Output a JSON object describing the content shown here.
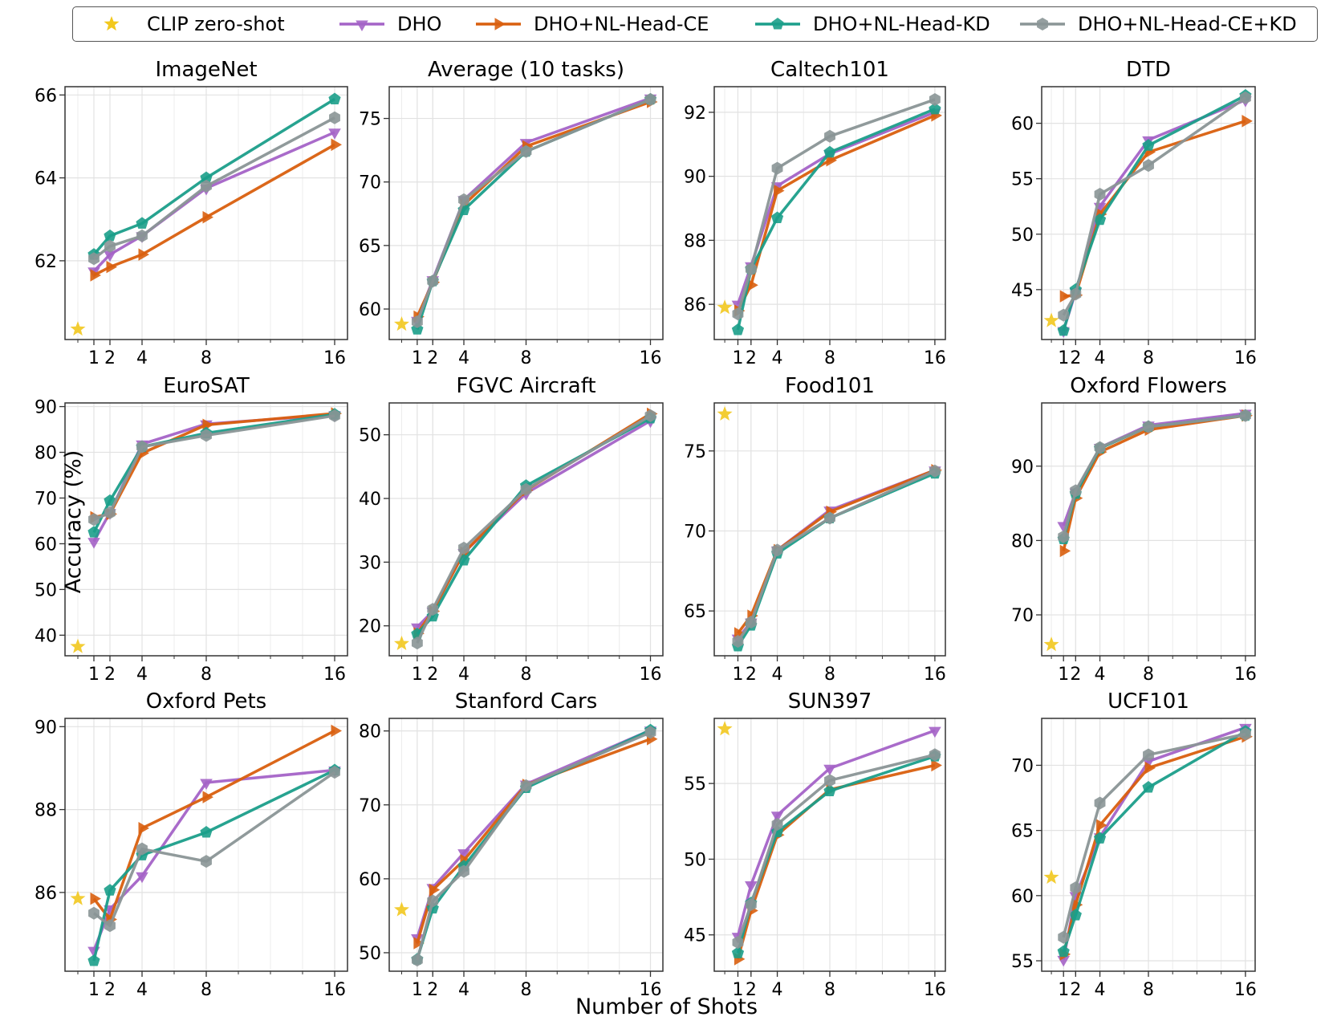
{
  "figure": {
    "xlabel": "Number of Shots",
    "ylabel": "Accuracy (%)"
  },
  "legend": [
    {
      "name": "CLIP zero-shot",
      "color": "#f2c81e",
      "marker": "star"
    },
    {
      "name": "DHO",
      "color": "#a463c7",
      "marker": "triangle-down"
    },
    {
      "name": "DHO+NL-Head-CE",
      "color": "#d95f0e",
      "marker": "triangle-right"
    },
    {
      "name": "DHO+NL-Head-KD",
      "color": "#1b9e8a",
      "marker": "pentagon"
    },
    {
      "name": "DHO+NL-Head-CE+KD",
      "color": "#8a9596",
      "marker": "hexagon"
    }
  ],
  "chart_data": [
    {
      "type": "line",
      "title": "ImageNet",
      "x": [
        1,
        2,
        4,
        8,
        16
      ],
      "xticks": [
        1,
        2,
        4,
        8,
        16
      ],
      "xlim": [
        -0.8,
        16.8
      ],
      "ylim": [
        60.1,
        66.2
      ],
      "yticks": [
        62,
        64,
        66
      ],
      "zero_shot": 60.35,
      "series": [
        {
          "name": "DHO",
          "values": [
            61.75,
            62.15,
            62.6,
            63.75,
            65.1
          ]
        },
        {
          "name": "DHO+NL-Head-CE",
          "values": [
            61.65,
            61.85,
            62.15,
            63.05,
            64.8
          ]
        },
        {
          "name": "DHO+NL-Head-KD",
          "values": [
            62.15,
            62.6,
            62.9,
            64.0,
            65.9
          ]
        },
        {
          "name": "DHO+NL-Head-CE+KD",
          "values": [
            62.05,
            62.35,
            62.6,
            63.8,
            65.45
          ]
        }
      ]
    },
    {
      "type": "line",
      "title": "Average (10 tasks)",
      "x": [
        1,
        2,
        4,
        8,
        16
      ],
      "xticks": [
        1,
        2,
        4,
        8,
        16
      ],
      "xlim": [
        -0.8,
        16.8
      ],
      "ylim": [
        57.6,
        77.5
      ],
      "yticks": [
        60,
        65,
        70,
        75
      ],
      "zero_shot": 58.8,
      "series": [
        {
          "name": "DHO",
          "values": [
            59.1,
            62.3,
            68.6,
            73.1,
            76.6
          ]
        },
        {
          "name": "DHO+NL-Head-CE",
          "values": [
            59.4,
            62.1,
            68.2,
            72.8,
            76.3
          ]
        },
        {
          "name": "DHO+NL-Head-KD",
          "values": [
            58.4,
            62.2,
            67.8,
            72.4,
            76.5
          ]
        },
        {
          "name": "DHO+NL-Head-CE+KD",
          "values": [
            59.0,
            62.2,
            68.6,
            72.4,
            76.5
          ]
        }
      ]
    },
    {
      "type": "line",
      "title": "Caltech101",
      "x": [
        1,
        2,
        4,
        8,
        16
      ],
      "xticks": [
        1,
        2,
        4,
        8,
        16
      ],
      "xlim": [
        -0.8,
        16.8
      ],
      "ylim": [
        84.9,
        92.8
      ],
      "yticks": [
        86,
        88,
        90,
        92
      ],
      "zero_shot": 85.9,
      "series": [
        {
          "name": "DHO",
          "values": [
            86.0,
            87.2,
            89.7,
            90.7,
            92.0
          ]
        },
        {
          "name": "DHO+NL-Head-CE",
          "values": [
            85.8,
            86.6,
            89.55,
            90.5,
            91.9
          ]
        },
        {
          "name": "DHO+NL-Head-KD",
          "values": [
            85.2,
            87.1,
            88.7,
            90.75,
            92.1
          ]
        },
        {
          "name": "DHO+NL-Head-CE+KD",
          "values": [
            85.7,
            87.1,
            90.25,
            91.25,
            92.4
          ]
        }
      ]
    },
    {
      "type": "line",
      "title": "DTD",
      "x": [
        1,
        2,
        4,
        8,
        16
      ],
      "xticks": [
        1,
        2,
        4,
        8,
        16
      ],
      "xlim": [
        -0.8,
        16.8
      ],
      "ylim": [
        40.5,
        63.3
      ],
      "yticks": [
        45,
        50,
        55,
        60
      ],
      "zero_shot": 42.2,
      "series": [
        {
          "name": "DHO",
          "values": [
            41.3,
            44.8,
            52.5,
            58.5,
            62.1
          ]
        },
        {
          "name": "DHO+NL-Head-CE",
          "values": [
            44.4,
            44.5,
            51.8,
            57.4,
            60.2
          ]
        },
        {
          "name": "DHO+NL-Head-KD",
          "values": [
            41.3,
            45.0,
            51.3,
            58.0,
            62.5
          ]
        },
        {
          "name": "DHO+NL-Head-CE+KD",
          "values": [
            42.7,
            44.6,
            53.6,
            56.2,
            62.3
          ]
        }
      ]
    },
    {
      "type": "line",
      "title": "EuroSAT",
      "x": [
        1,
        2,
        4,
        8,
        16
      ],
      "xticks": [
        1,
        2,
        4,
        8,
        16
      ],
      "xlim": [
        -0.8,
        16.8
      ],
      "ylim": [
        35.5,
        90.8
      ],
      "yticks": [
        40,
        50,
        60,
        70,
        80,
        90
      ],
      "zero_shot": 37.5,
      "series": [
        {
          "name": "DHO",
          "values": [
            60.5,
            66.8,
            81.8,
            86.2,
            88.2
          ]
        },
        {
          "name": "DHO+NL-Head-CE",
          "values": [
            65.8,
            66.5,
            79.8,
            86.0,
            88.5
          ]
        },
        {
          "name": "DHO+NL-Head-KD",
          "values": [
            62.5,
            69.4,
            81.2,
            84.2,
            88.3
          ]
        },
        {
          "name": "DHO+NL-Head-CE+KD",
          "values": [
            65.3,
            66.8,
            81.2,
            83.7,
            88.0
          ]
        }
      ]
    },
    {
      "type": "line",
      "title": "FGVC Aircraft",
      "x": [
        1,
        2,
        4,
        8,
        16
      ],
      "xticks": [
        1,
        2,
        4,
        8,
        16
      ],
      "xlim": [
        -0.8,
        16.8
      ],
      "ylim": [
        15.3,
        55.0
      ],
      "yticks": [
        20,
        30,
        40,
        50
      ],
      "zero_shot": 17.2,
      "series": [
        {
          "name": "DHO",
          "values": [
            19.8,
            22.3,
            31.5,
            40.8,
            52.2
          ]
        },
        {
          "name": "DHO+NL-Head-CE",
          "values": [
            18.8,
            22.3,
            31.5,
            41.3,
            53.3
          ]
        },
        {
          "name": "DHO+NL-Head-KD",
          "values": [
            18.7,
            21.5,
            30.3,
            42.0,
            52.6
          ]
        },
        {
          "name": "DHO+NL-Head-CE+KD",
          "values": [
            17.3,
            22.6,
            32.2,
            41.4,
            53.0
          ]
        }
      ]
    },
    {
      "type": "line",
      "title": "Food101",
      "x": [
        1,
        2,
        4,
        8,
        16
      ],
      "xticks": [
        1,
        2,
        4,
        8,
        16
      ],
      "xlim": [
        -0.8,
        16.8
      ],
      "ylim": [
        62.2,
        78.0
      ],
      "yticks": [
        65,
        70,
        75
      ],
      "zero_shot": 77.3,
      "series": [
        {
          "name": "DHO",
          "values": [
            63.3,
            64.3,
            68.8,
            71.3,
            73.8
          ]
        },
        {
          "name": "DHO+NL-Head-CE",
          "values": [
            63.6,
            64.7,
            68.8,
            71.2,
            73.8
          ]
        },
        {
          "name": "DHO+NL-Head-KD",
          "values": [
            62.8,
            64.1,
            68.6,
            70.8,
            73.6
          ]
        },
        {
          "name": "DHO+NL-Head-CE+KD",
          "values": [
            63.1,
            64.3,
            68.8,
            70.8,
            73.75
          ]
        }
      ]
    },
    {
      "type": "line",
      "title": "Oxford Flowers",
      "x": [
        1,
        2,
        4,
        8,
        16
      ],
      "xticks": [
        1,
        2,
        4,
        8,
        16
      ],
      "xlim": [
        -0.8,
        16.8
      ],
      "ylim": [
        64.5,
        98.5
      ],
      "yticks": [
        70,
        80,
        90
      ],
      "zero_shot": 66.0,
      "series": [
        {
          "name": "DHO",
          "values": [
            82.0,
            86.5,
            92.5,
            95.5,
            97.1
          ]
        },
        {
          "name": "DHO+NL-Head-CE",
          "values": [
            78.6,
            85.7,
            91.9,
            94.9,
            96.8
          ]
        },
        {
          "name": "DHO+NL-Head-KD",
          "values": [
            80.2,
            86.3,
            92.4,
            95.3,
            96.8
          ]
        },
        {
          "name": "DHO+NL-Head-CE+KD",
          "values": [
            80.5,
            86.7,
            92.5,
            95.3,
            96.8
          ]
        }
      ]
    },
    {
      "type": "line",
      "title": "Oxford Pets",
      "x": [
        1,
        2,
        4,
        8,
        16
      ],
      "xticks": [
        1,
        2,
        4,
        8,
        16
      ],
      "xlim": [
        -0.8,
        16.8
      ],
      "ylim": [
        84.1,
        90.2
      ],
      "yticks": [
        86,
        88,
        90
      ],
      "zero_shot": 85.85,
      "series": [
        {
          "name": "DHO",
          "values": [
            84.6,
            85.6,
            86.4,
            88.65,
            88.95
          ]
        },
        {
          "name": "DHO+NL-Head-CE",
          "values": [
            85.85,
            85.35,
            87.55,
            88.3,
            89.9
          ]
        },
        {
          "name": "DHO+NL-Head-KD",
          "values": [
            84.35,
            86.05,
            86.9,
            87.45,
            88.95
          ]
        },
        {
          "name": "DHO+NL-Head-CE+KD",
          "values": [
            85.5,
            85.2,
            87.05,
            86.75,
            88.9
          ]
        }
      ]
    },
    {
      "type": "line",
      "title": "Stanford Cars",
      "x": [
        1,
        2,
        4,
        8,
        16
      ],
      "xticks": [
        1,
        2,
        4,
        8,
        16
      ],
      "xlim": [
        -0.8,
        16.8
      ],
      "ylim": [
        47.5,
        81.7
      ],
      "yticks": [
        50,
        60,
        70,
        80
      ],
      "zero_shot": 55.8,
      "series": [
        {
          "name": "DHO",
          "values": [
            52.0,
            58.8,
            63.5,
            72.8,
            80.1
          ]
        },
        {
          "name": "DHO+NL-Head-CE",
          "values": [
            51.3,
            58.5,
            62.5,
            72.7,
            78.9
          ]
        },
        {
          "name": "DHO+NL-Head-KD",
          "values": [
            49.1,
            56.0,
            61.7,
            72.3,
            80.1
          ]
        },
        {
          "name": "DHO+NL-Head-CE+KD",
          "values": [
            49.0,
            57.0,
            61.0,
            72.6,
            79.8
          ]
        }
      ]
    },
    {
      "type": "line",
      "title": "SUN397",
      "x": [
        1,
        2,
        4,
        8,
        16
      ],
      "xticks": [
        1,
        2,
        4,
        8,
        16
      ],
      "xlim": [
        -0.8,
        16.8
      ],
      "ylim": [
        42.6,
        59.3
      ],
      "yticks": [
        45,
        50,
        55
      ],
      "zero_shot": 58.6,
      "series": [
        {
          "name": "DHO",
          "values": [
            44.9,
            48.3,
            52.9,
            56.0,
            58.5
          ]
        },
        {
          "name": "DHO+NL-Head-CE",
          "values": [
            43.4,
            46.6,
            51.6,
            54.6,
            56.2
          ]
        },
        {
          "name": "DHO+NL-Head-KD",
          "values": [
            43.8,
            47.1,
            51.8,
            54.5,
            56.8
          ]
        },
        {
          "name": "DHO+NL-Head-CE+KD",
          "values": [
            44.5,
            47.0,
            52.3,
            55.2,
            56.9
          ]
        }
      ]
    },
    {
      "type": "line",
      "title": "UCF101",
      "x": [
        1,
        2,
        4,
        8,
        16
      ],
      "xticks": [
        1,
        2,
        4,
        8,
        16
      ],
      "xlim": [
        -0.8,
        16.8
      ],
      "ylim": [
        54.2,
        73.6
      ],
      "yticks": [
        55,
        60,
        65,
        70
      ],
      "zero_shot": 61.4,
      "series": [
        {
          "name": "DHO",
          "values": [
            55.1,
            60.0,
            64.5,
            70.3,
            72.9
          ]
        },
        {
          "name": "DHO+NL-Head-CE",
          "values": [
            55.5,
            59.3,
            65.4,
            69.8,
            72.2
          ]
        },
        {
          "name": "DHO+NL-Head-KD",
          "values": [
            55.7,
            58.5,
            64.4,
            68.3,
            72.6
          ]
        },
        {
          "name": "DHO+NL-Head-CE+KD",
          "values": [
            56.8,
            60.6,
            67.1,
            70.8,
            72.4
          ]
        }
      ]
    }
  ]
}
